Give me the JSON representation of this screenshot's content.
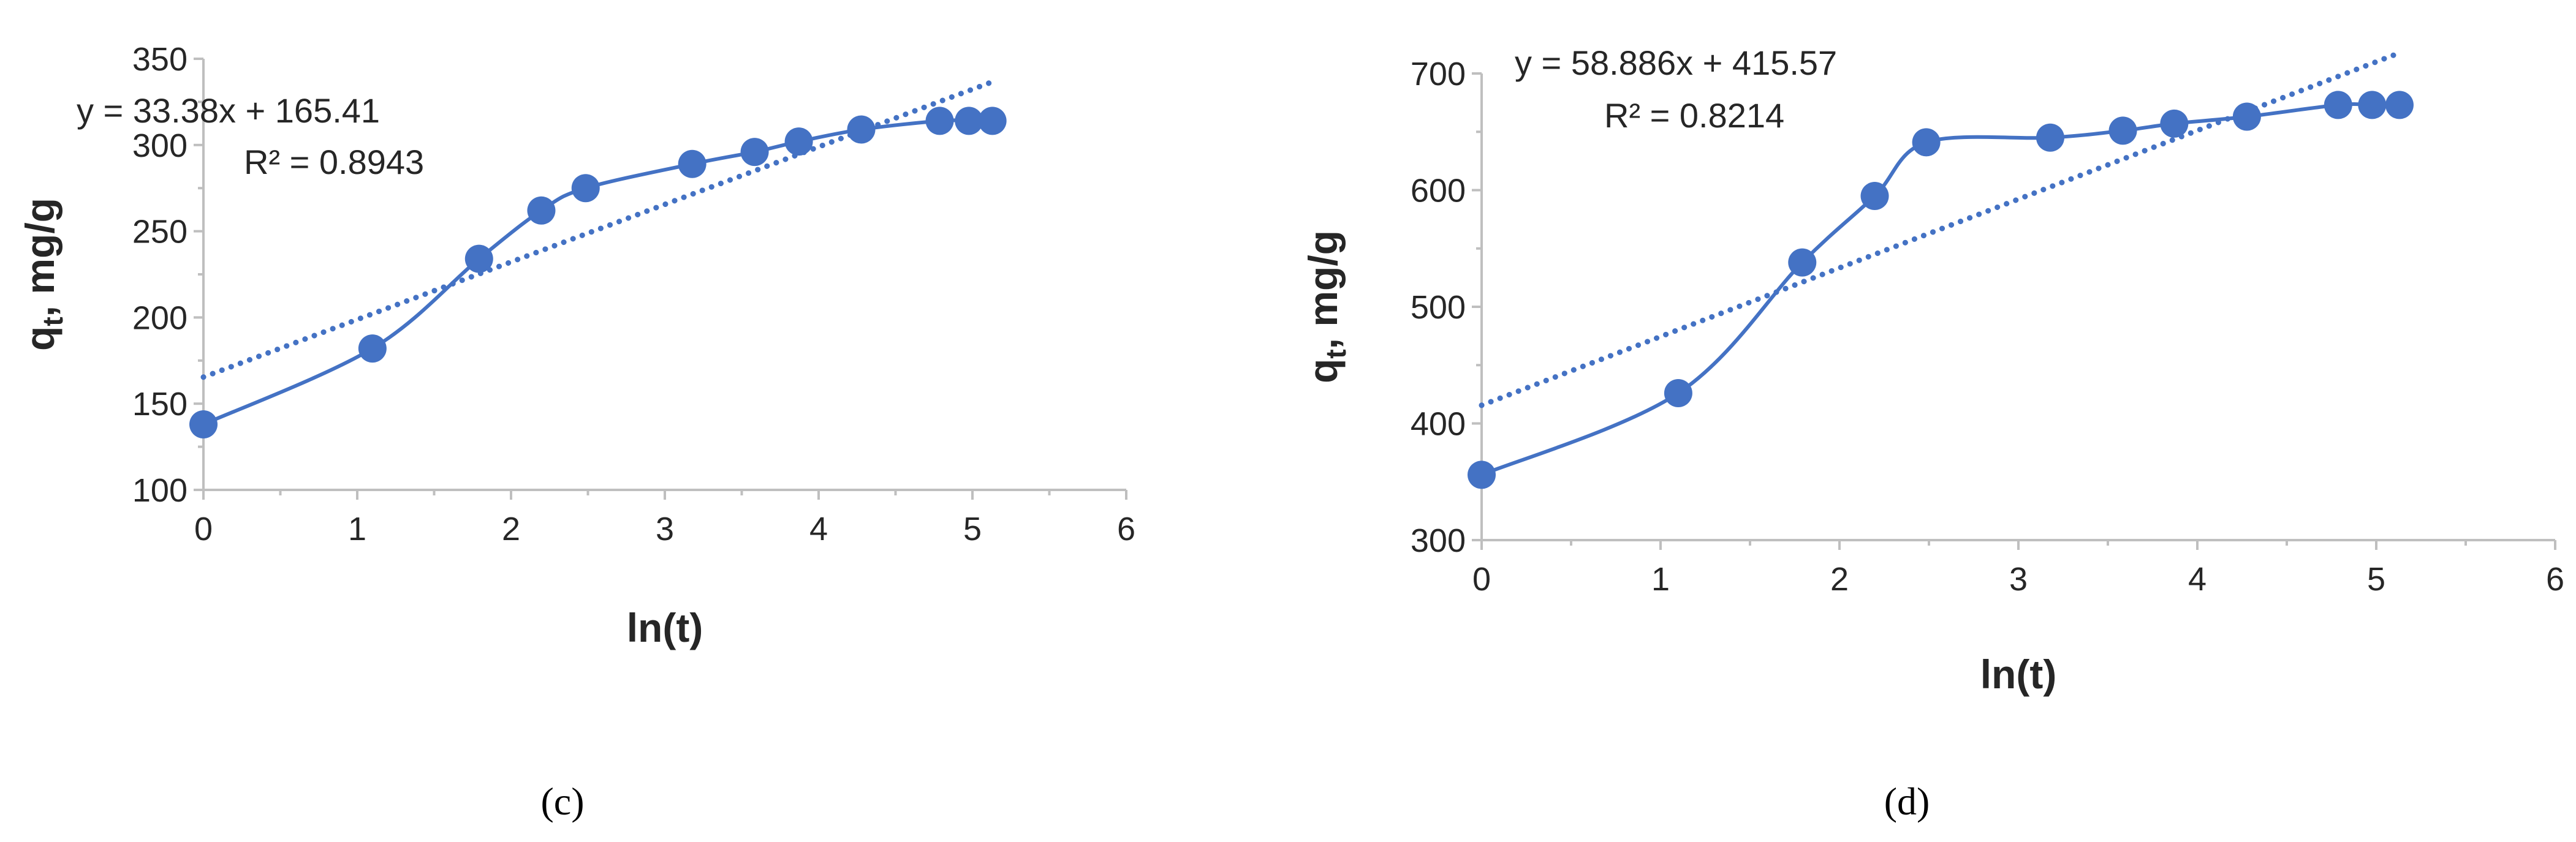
{
  "colors": {
    "series": "#4472C4",
    "axis": "#BFBFBF",
    "text": "#262626"
  },
  "chart_data": [
    {
      "panel_label": "(c)",
      "type": "scatter",
      "xlabel": "ln(t)",
      "ylabel": "qt, mg/g",
      "ylabel_main": "q",
      "ylabel_sub": "t",
      "ylabel_rest": ", mg/g",
      "xlim": [
        0,
        6
      ],
      "ylim": [
        100,
        350
      ],
      "x_ticks": [
        0,
        1,
        2,
        3,
        4,
        5,
        6
      ],
      "y_ticks": [
        100,
        150,
        200,
        250,
        300,
        350
      ],
      "x_tick_labels": [
        "0",
        "1",
        "2",
        "3",
        "4",
        "5",
        "6"
      ],
      "y_tick_labels": [
        "100",
        "150",
        "200",
        "250",
        "300",
        "350"
      ],
      "grid": false,
      "series": [
        {
          "x": [
            0,
            1.099,
            1.792,
            2.197,
            2.485,
            3.178,
            3.584,
            3.871,
            4.277,
            4.787,
            4.977,
            5.13
          ],
          "y": [
            138,
            182,
            234,
            262,
            275,
            289,
            296,
            302,
            309,
            314,
            314,
            314
          ]
        }
      ],
      "trendline": {
        "slope": 33.38,
        "intercept": 165.41,
        "x_range": [
          0,
          5.13
        ],
        "style": "dotted"
      },
      "equation": "y = 33.38x + 165.41",
      "r_squared": "R² = 0.8943"
    },
    {
      "panel_label": "(d)",
      "type": "scatter",
      "xlabel": "ln(t)",
      "ylabel": "qt, mg/g",
      "ylabel_main": "q",
      "ylabel_sub": "t",
      "ylabel_rest": ", mg/g",
      "xlim": [
        0,
        6
      ],
      "ylim": [
        300,
        700
      ],
      "x_ticks": [
        0,
        1,
        2,
        3,
        4,
        5,
        6
      ],
      "y_ticks": [
        300,
        400,
        500,
        600,
        700
      ],
      "x_tick_labels": [
        "0",
        "1",
        "2",
        "3",
        "4",
        "5",
        "6"
      ],
      "y_tick_labels": [
        "300",
        "400",
        "500",
        "600",
        "700"
      ],
      "grid": false,
      "series": [
        {
          "x": [
            0,
            1.099,
            1.792,
            2.197,
            2.485,
            3.178,
            3.584,
            3.871,
            4.277,
            4.787,
            4.977,
            5.13
          ],
          "y": [
            356,
            426,
            538,
            595,
            641,
            645,
            651,
            657,
            663,
            673,
            673,
            673
          ]
        }
      ],
      "trendline": {
        "slope": 58.886,
        "intercept": 415.57,
        "x_range": [
          0,
          5.13
        ],
        "style": "dotted"
      },
      "equation": "y = 58.886x + 415.57",
      "r_squared": "R² = 0.8214"
    }
  ]
}
